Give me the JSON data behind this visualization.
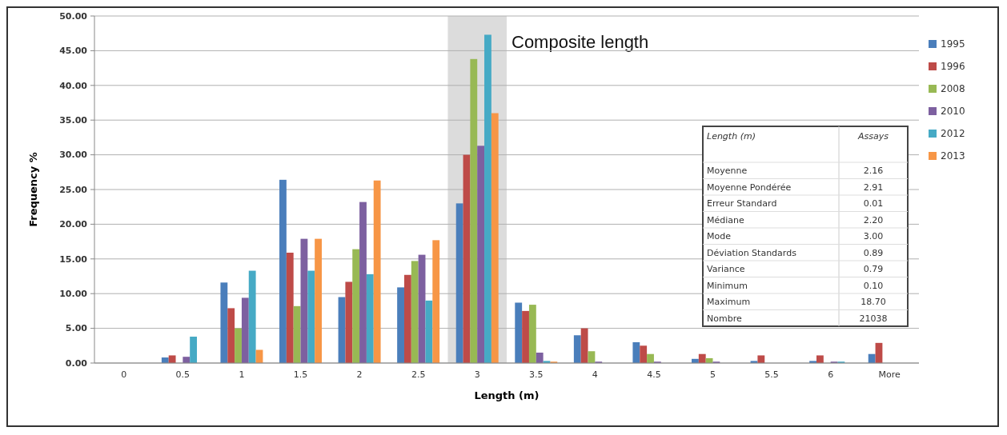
{
  "chart_data": {
    "type": "bar",
    "xlabel": "Length (m)",
    "ylabel": "Frequency %",
    "categories": [
      "0",
      "0.5",
      "1",
      "1.5",
      "2",
      "2.5",
      "3",
      "3.5",
      "4",
      "4.5",
      "5",
      "5.5",
      "6",
      "More"
    ],
    "series": [
      {
        "name": "1995",
        "color": "#4a7ebb",
        "values": [
          0,
          0.8,
          11.6,
          26.4,
          9.5,
          10.9,
          23.0,
          8.7,
          4.0,
          3.0,
          0.6,
          0.3,
          0.3,
          1.3
        ]
      },
      {
        "name": "1996",
        "color": "#be4b48",
        "values": [
          0,
          1.1,
          7.9,
          15.9,
          11.7,
          12.7,
          30.0,
          7.5,
          5.0,
          2.5,
          1.3,
          1.1,
          1.1,
          2.9
        ]
      },
      {
        "name": "2008",
        "color": "#98b954",
        "values": [
          0,
          0,
          5.0,
          8.2,
          16.4,
          14.7,
          43.8,
          8.4,
          1.7,
          1.3,
          0.7,
          0,
          0,
          0
        ]
      },
      {
        "name": "2010",
        "color": "#7d60a0",
        "values": [
          0,
          0.9,
          9.4,
          17.9,
          23.2,
          15.6,
          31.3,
          1.5,
          0.2,
          0.2,
          0.2,
          0,
          0.2,
          0
        ]
      },
      {
        "name": "2012",
        "color": "#46aac5",
        "values": [
          0,
          3.8,
          13.3,
          13.3,
          12.8,
          9.0,
          47.3,
          0.3,
          null,
          0,
          0,
          0,
          0.2,
          0
        ]
      },
      {
        "name": "2013",
        "color": "#f79646",
        "values": [
          0,
          0,
          1.9,
          17.9,
          26.3,
          17.7,
          36.0,
          0.2,
          0,
          0,
          0,
          0,
          0,
          0
        ]
      }
    ],
    "ylim": [
      0,
      50
    ],
    "yticks": [
      {
        "value": 0,
        "label": "0.00"
      },
      {
        "value": 5,
        "label": "5.00"
      },
      {
        "value": 10,
        "label": "10.00"
      },
      {
        "value": 15,
        "label": "15.00"
      },
      {
        "value": 20,
        "label": "20.00"
      },
      {
        "value": 25,
        "label": "25.00"
      },
      {
        "value": 30,
        "label": "30.00"
      },
      {
        "value": 35,
        "label": "35.00"
      },
      {
        "value": 40,
        "label": "40.00"
      },
      {
        "value": 45,
        "label": "45.00"
      },
      {
        "value": 50,
        "label": "50.00"
      }
    ],
    "grid": "y",
    "legend": "top right",
    "bands": [
      {
        "axis": "x",
        "from": "3",
        "to": "3",
        "label": "Composite length",
        "color": "#dcdcdc"
      }
    ],
    "annotations": [
      "Length (m)",
      "Assays",
      "Moyenne",
      "2.16",
      "Moyenne Pondérée",
      "2.91",
      "Erreur Standard",
      "0.01",
      "Médiane",
      "2.20",
      "Mode",
      "3.00",
      "Déviation Standards",
      "0.89",
      "Variance",
      "0.79",
      "Minimum",
      "0.10",
      "Maximum",
      "18.70",
      "Nombre",
      "21038"
    ]
  }
}
